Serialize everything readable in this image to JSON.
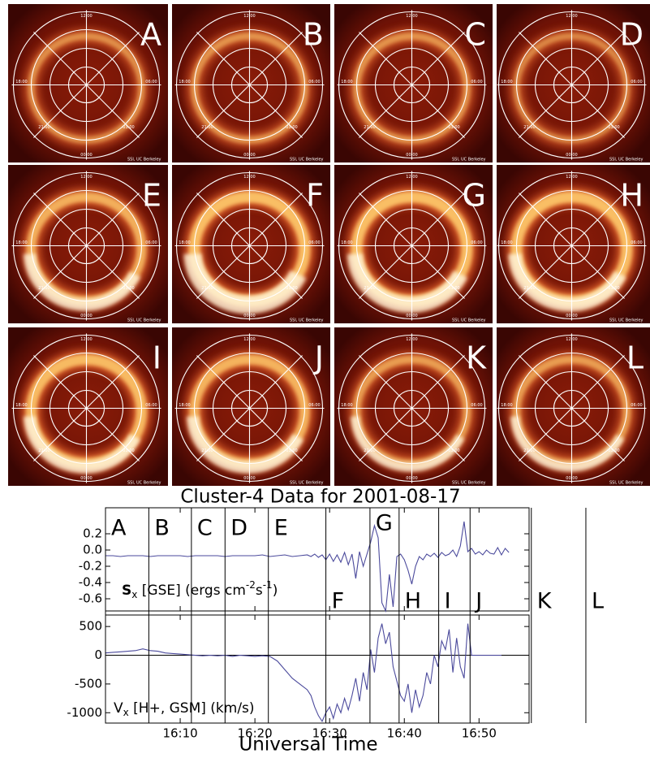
{
  "polar_labels": {
    "top": "12:00",
    "left": "18:00",
    "right": "06:00",
    "bottom": "00:00",
    "lower_left": "21:00",
    "lower_right": "03:00",
    "credit": "SSI, UC Berkeley"
  },
  "chart_data": {
    "type": "line",
    "title": "Cluster-4 Data for 2001-08-17",
    "xlabel": "Universal Time",
    "xlim": [
      960,
      1016.7
    ],
    "xticks": [
      {
        "value": 970,
        "label": "16:10"
      },
      {
        "value": 980,
        "label": "16:20"
      },
      {
        "value": 990,
        "label": "16:30"
      },
      {
        "value": 1000,
        "label": "16:40"
      },
      {
        "value": 1010,
        "label": "16:50"
      }
    ],
    "events": [
      {
        "label": "A",
        "x": 960
      },
      {
        "label": "B",
        "x": 965.8
      },
      {
        "label": "C",
        "x": 971.5
      },
      {
        "label": "D",
        "x": 976
      },
      {
        "label": "E",
        "x": 981.8
      },
      {
        "label": "F",
        "x": 989.5
      },
      {
        "label": "G",
        "x": 995.4
      },
      {
        "label": "H",
        "x": 999.3
      },
      {
        "label": "I",
        "x": 1004.6
      },
      {
        "label": "J",
        "x": 1008.8
      },
      {
        "label": "K",
        "x": 1017
      },
      {
        "label": "L",
        "x": 1024.3
      }
    ],
    "x": [
      960,
      961,
      962,
      963,
      964,
      965,
      966,
      967,
      968,
      969,
      970,
      971,
      972,
      973,
      974,
      975,
      976,
      977,
      978,
      979,
      980,
      981,
      982,
      983,
      984,
      985,
      986,
      987,
      987.5,
      988,
      988.5,
      989,
      989.5,
      990,
      990.5,
      991,
      991.5,
      992,
      992.5,
      993,
      993.5,
      994,
      994.5,
      995,
      995.5,
      996,
      996.5,
      997,
      997.5,
      998,
      998.5,
      999,
      999.5,
      1000,
      1000.5,
      1001,
      1001.5,
      1002,
      1002.5,
      1003,
      1003.5,
      1004,
      1004.5,
      1005,
      1005.5,
      1006,
      1006.5,
      1007,
      1007.5,
      1008,
      1008.5,
      1009,
      1009.5,
      1010,
      1010.5,
      1011,
      1011.5,
      1012,
      1012.5,
      1013,
      1013.5,
      1014
    ],
    "panels": [
      {
        "ylabel": [
          "S",
          "x",
          " [GSE] (ergs cm",
          "-2",
          "s",
          "-1",
          ")"
        ],
        "color": "#4b4a9c",
        "ylim": [
          -0.75,
          0.52
        ],
        "yticks": [
          0.2,
          {
            "value": 0,
            "label": "0.0"
          },
          -0.2,
          -0.4,
          -0.6
        ],
        "values": [
          -0.07,
          -0.07,
          -0.08,
          -0.07,
          -0.07,
          -0.07,
          -0.08,
          -0.07,
          -0.07,
          -0.07,
          -0.07,
          -0.08,
          -0.07,
          -0.07,
          -0.07,
          -0.07,
          -0.08,
          -0.07,
          -0.07,
          -0.07,
          -0.07,
          -0.06,
          -0.08,
          -0.07,
          -0.06,
          -0.08,
          -0.07,
          -0.06,
          -0.08,
          -0.05,
          -0.09,
          -0.06,
          -0.12,
          -0.05,
          -0.14,
          -0.06,
          -0.15,
          -0.03,
          -0.18,
          -0.05,
          -0.35,
          -0.02,
          -0.2,
          -0.05,
          0.1,
          0.3,
          0.15,
          -0.65,
          -0.75,
          -0.3,
          -0.7,
          -0.08,
          -0.05,
          -0.12,
          -0.25,
          -0.42,
          -0.2,
          -0.08,
          -0.12,
          -0.05,
          -0.08,
          -0.04,
          -0.09,
          -0.03,
          -0.07,
          -0.05,
          0.0,
          -0.08,
          0.05,
          0.35,
          -0.02,
          0.02,
          -0.05,
          -0.02,
          -0.06,
          0.0,
          -0.04,
          -0.05,
          0.03,
          -0.06,
          0.02,
          -0.03
        ]
      },
      {
        "ylabel": [
          "V",
          "x",
          "  [H+, GSM] (km/s)"
        ],
        "color": "#4b4a9c",
        "zero_line": true,
        "ylim": [
          -1180,
          700
        ],
        "yticks": [
          500,
          0,
          -500,
          -1000
        ],
        "values": [
          40,
          50,
          60,
          70,
          80,
          110,
          80,
          70,
          40,
          30,
          20,
          10,
          0,
          -10,
          0,
          -10,
          0,
          -20,
          0,
          -10,
          -20,
          -10,
          -20,
          -100,
          -250,
          -400,
          -500,
          -600,
          -700,
          -900,
          -1050,
          -1150,
          -1000,
          -900,
          -1100,
          -850,
          -1000,
          -750,
          -950,
          -700,
          -400,
          -800,
          -300,
          -600,
          100,
          -300,
          300,
          550,
          200,
          400,
          -200,
          -450,
          -700,
          -800,
          -500,
          -1000,
          -600,
          -900,
          -700,
          -300,
          -500,
          0,
          -200,
          250,
          100,
          450,
          -300,
          300,
          -200,
          -400,
          550,
          0,
          0,
          0,
          0,
          0,
          0,
          0,
          0,
          0,
          null,
          null
        ]
      }
    ]
  }
}
